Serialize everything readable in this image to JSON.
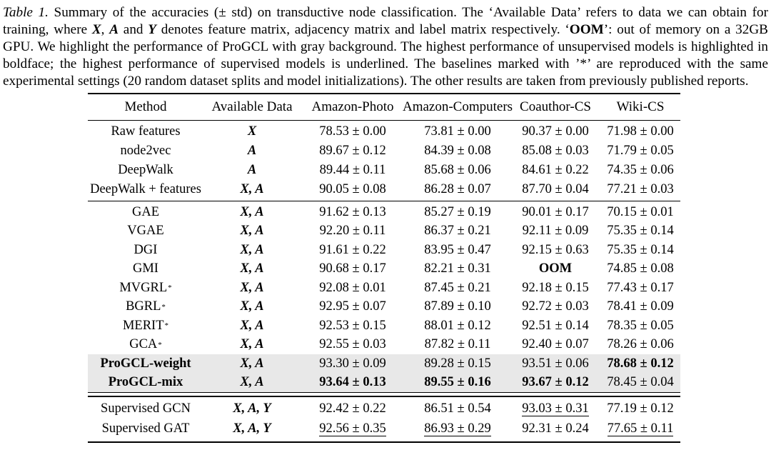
{
  "caption": {
    "label": "Table 1.",
    "part1": " Summary of the accuracies (± std) on transductive node classification. The ‘Available Data’ refers to data we can obtain for training, where ",
    "x": "X",
    "sep1": ", ",
    "a": "A",
    "sep2": " and ",
    "y": "Y",
    "part2": " denotes feature matrix, adjacency matrix and label matrix respectively. ‘",
    "oom": "OOM",
    "part3": "’: out of memory on a 32GB GPU. We highlight the performance of ProGCL with gray background. The highest performance of unsupervised models is highlighted in boldface; the highest performance of supervised models is underlined. The baselines marked with ’*’ are reproduced with the same experimental settings (20 random dataset splits and model initializations). The other results are taken from previously published reports."
  },
  "highlight_color": "#e8e8e8",
  "table": {
    "headers": [
      "Method",
      "Available Data",
      "Amazon-Photo",
      "Amazon-Computers",
      "Coauthor-CS",
      "Wiki-CS"
    ],
    "groups": [
      {
        "name": "traditional-methods",
        "rows": [
          {
            "method": "Raw features",
            "avail": "X",
            "vals": [
              {
                "t": "78.53 ± 0.00"
              },
              {
                "t": "73.81 ± 0.00"
              },
              {
                "t": "90.37 ± 0.00"
              },
              {
                "t": "71.98 ± 0.00"
              }
            ]
          },
          {
            "method": "node2vec",
            "avail": "A",
            "vals": [
              {
                "t": "89.67 ± 0.12"
              },
              {
                "t": "84.39 ± 0.08"
              },
              {
                "t": "85.08 ± 0.03"
              },
              {
                "t": "71.79 ± 0.05"
              }
            ]
          },
          {
            "method": "DeepWalk",
            "avail": "A",
            "vals": [
              {
                "t": "89.44 ± 0.11"
              },
              {
                "t": "85.68 ± 0.06"
              },
              {
                "t": "84.61 ± 0.22"
              },
              {
                "t": "74.35 ± 0.06"
              }
            ]
          },
          {
            "method": "DeepWalk + features",
            "avail": "X, A",
            "vals": [
              {
                "t": "90.05 ± 0.08"
              },
              {
                "t": "86.28 ± 0.07"
              },
              {
                "t": "87.70 ± 0.04"
              },
              {
                "t": "77.21 ± 0.03"
              }
            ]
          }
        ]
      },
      {
        "name": "unsupervised-methods",
        "rows": [
          {
            "method": "GAE",
            "avail": "X, A",
            "vals": [
              {
                "t": "91.62 ± 0.13"
              },
              {
                "t": "85.27 ± 0.19"
              },
              {
                "t": "90.01 ± 0.17"
              },
              {
                "t": "70.15 ± 0.01"
              }
            ]
          },
          {
            "method": "VGAE",
            "avail": "X, A",
            "vals": [
              {
                "t": "92.20 ± 0.11"
              },
              {
                "t": "86.37 ± 0.21"
              },
              {
                "t": "92.11 ± 0.09"
              },
              {
                "t": "75.35 ± 0.14"
              }
            ]
          },
          {
            "method": "DGI",
            "avail": "X, A",
            "vals": [
              {
                "t": "91.61 ± 0.22"
              },
              {
                "t": "83.95 ± 0.47"
              },
              {
                "t": "92.15 ± 0.63"
              },
              {
                "t": "75.35 ± 0.14"
              }
            ]
          },
          {
            "method": "GMI",
            "avail": "X, A",
            "vals": [
              {
                "t": "90.68 ± 0.17"
              },
              {
                "t": "82.21 ± 0.31"
              },
              {
                "t": "OOM",
                "b": true
              },
              {
                "t": "74.85 ± 0.08"
              }
            ]
          },
          {
            "method": "MVGRL",
            "msup": "*",
            "avail": "X, A",
            "vals": [
              {
                "t": "92.08 ± 0.01"
              },
              {
                "t": "87.45 ± 0.21"
              },
              {
                "t": "92.18 ± 0.15"
              },
              {
                "t": "77.43 ± 0.17"
              }
            ]
          },
          {
            "method": "BGRL",
            "msup": "*",
            "avail": "X, A",
            "vals": [
              {
                "t": "92.95 ± 0.07"
              },
              {
                "t": "87.89 ± 0.10"
              },
              {
                "t": "92.72 ± 0.03"
              },
              {
                "t": "78.41 ± 0.09"
              }
            ]
          },
          {
            "method": "MERIT",
            "msup": "*",
            "avail": "X, A",
            "vals": [
              {
                "t": "92.53 ± 0.15"
              },
              {
                "t": "88.01 ± 0.12"
              },
              {
                "t": "92.51 ± 0.14"
              },
              {
                "t": "78.35 ± 0.05"
              }
            ]
          },
          {
            "method": "GCA",
            "msup": "*",
            "avail": "X, A",
            "vals": [
              {
                "t": "92.55 ± 0.03"
              },
              {
                "t": "87.82 ± 0.11"
              },
              {
                "t": "92.40 ± 0.07"
              },
              {
                "t": "78.26 ± 0.06"
              }
            ]
          },
          {
            "method": "ProGCL-weight",
            "mbold": true,
            "hl": true,
            "avail": "X, A",
            "vals": [
              {
                "t": "93.30 ± 0.09"
              },
              {
                "t": "89.28 ± 0.15"
              },
              {
                "t": "93.51 ± 0.06"
              },
              {
                "t": "78.68 ± 0.12",
                "b": true
              }
            ]
          },
          {
            "method": "ProGCL-mix",
            "mbold": true,
            "hl": true,
            "avail": "X, A",
            "vals": [
              {
                "t": "93.64 ± 0.13",
                "b": true
              },
              {
                "t": "89.55 ± 0.16",
                "b": true
              },
              {
                "t": "93.67 ± 0.12",
                "b": true
              },
              {
                "t": "78.45 ± 0.04"
              }
            ]
          }
        ]
      },
      {
        "name": "supervised-methods",
        "rows": [
          {
            "method": "Supervised GCN",
            "avail": "X, A, Y",
            "vals": [
              {
                "t": "92.42 ± 0.22"
              },
              {
                "t": "86.51 ± 0.54"
              },
              {
                "t": "93.03 ± 0.31",
                "u": true
              },
              {
                "t": "77.19 ± 0.12"
              }
            ]
          },
          {
            "method": "Supervised GAT",
            "avail": "X, A, Y",
            "vals": [
              {
                "t": "92.56 ± 0.35",
                "u": true
              },
              {
                "t": "86.93 ± 0.29",
                "u": true
              },
              {
                "t": "92.31 ± 0.24"
              },
              {
                "t": "77.65 ± 0.11",
                "u": true
              }
            ]
          }
        ]
      }
    ]
  }
}
